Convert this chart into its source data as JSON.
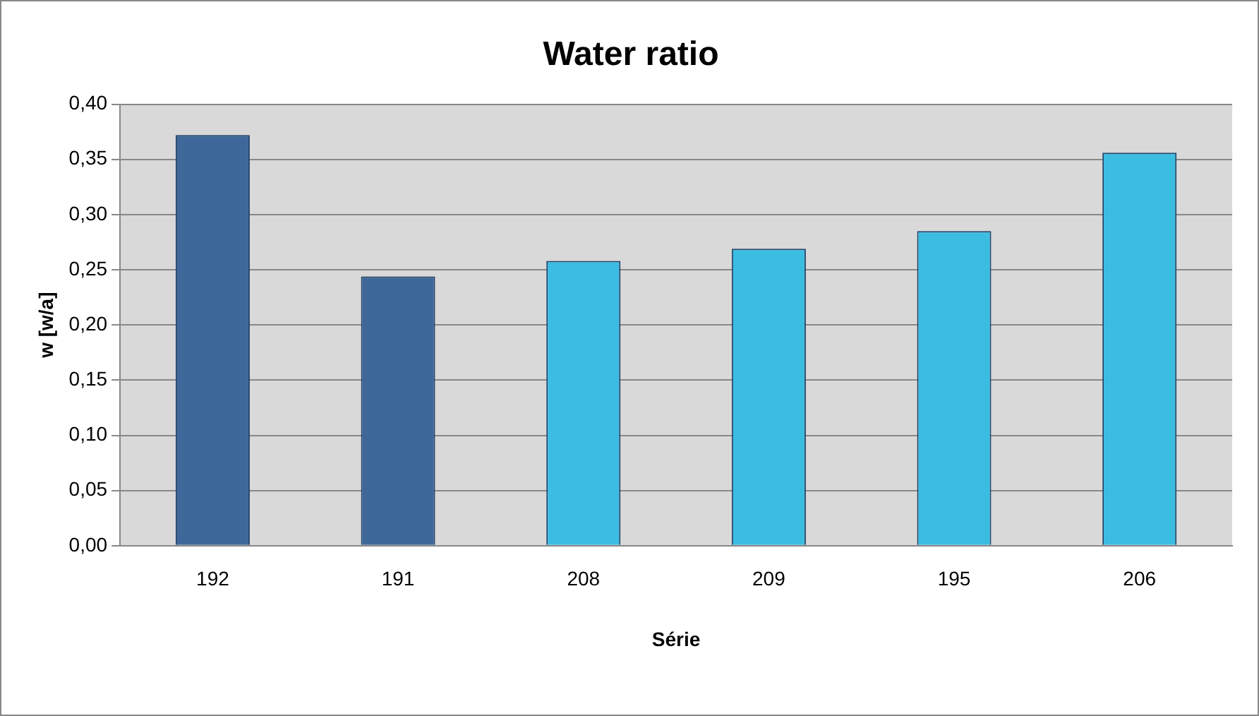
{
  "chart_data": {
    "type": "bar",
    "title": "Water ratio",
    "xlabel": "Série",
    "ylabel": "w [w/a]",
    "categories": [
      "192",
      "191",
      "208",
      "209",
      "195",
      "206"
    ],
    "values": [
      0.372,
      0.244,
      0.258,
      0.269,
      0.285,
      0.356
    ],
    "colors": [
      "#3d6899",
      "#3d6899",
      "#3bbde2",
      "#3bbde2",
      "#3bbde2",
      "#3bbde2"
    ],
    "ylim": [
      0,
      0.4
    ],
    "yticks": [
      {
        "value": 0,
        "label": "0,00"
      },
      {
        "value": 0.05,
        "label": "0,05"
      },
      {
        "value": 0.1,
        "label": "0,10"
      },
      {
        "value": 0.15,
        "label": "0,15"
      },
      {
        "value": 0.2,
        "label": "0,20"
      },
      {
        "value": 0.25,
        "label": "0,25"
      },
      {
        "value": 0.3,
        "label": "0,30"
      },
      {
        "value": 0.35,
        "label": "0,35"
      },
      {
        "value": 0.4,
        "label": "0,40"
      }
    ],
    "grid": "y",
    "legend": false
  }
}
